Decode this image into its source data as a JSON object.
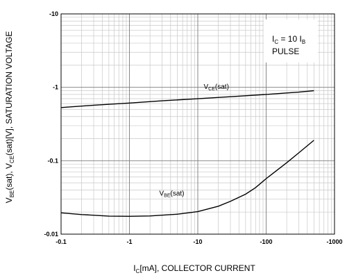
{
  "chart_data": {
    "type": "line",
    "xscale": "log",
    "yscale": "log",
    "xlim": [
      -0.1,
      -1000
    ],
    "ylim": [
      -0.01,
      -10
    ],
    "x_ticks": [
      "-0.1",
      "-1",
      "-10",
      "-100",
      "-1000"
    ],
    "y_ticks": [
      "-0.01",
      "-0.1",
      "-1",
      "-10"
    ],
    "xlabel": {
      "pre": "I",
      "sub": "C",
      "post": "[mA], COLLECTOR CURRENT"
    },
    "ylabel": {
      "p1": "V",
      "s1": "BE",
      "p2": "(sat),  V",
      "s2": "CE",
      "p3": "(sat)[V], SATURATION VOLTAGE"
    },
    "conditions": {
      "line1_pre": "I",
      "line1_sub1": "C",
      "line1_mid": " = 10 I",
      "line1_sub2": "B",
      "line2": "PULSE"
    },
    "grid": true,
    "series": [
      {
        "name": "VCE(sat)",
        "label_main": "V",
        "label_sub": "CE",
        "label_post": "(sat)",
        "x": [
          -0.1,
          -0.3,
          -1,
          -3,
          -10,
          -30,
          -100,
          -300,
          -500
        ],
        "y": [
          -0.53,
          -0.57,
          -0.61,
          -0.655,
          -0.7,
          -0.745,
          -0.8,
          -0.86,
          -0.9
        ]
      },
      {
        "name": "VBE(sat)",
        "label_main": "V",
        "label_sub": "BE",
        "label_post": "(sat)",
        "x": [
          -0.1,
          -0.2,
          -0.5,
          -1,
          -2,
          -5,
          -10,
          -20,
          -30,
          -50,
          -70,
          -100,
          -200,
          -300,
          -500
        ],
        "y": [
          -0.0195,
          -0.0185,
          -0.0176,
          -0.0175,
          -0.0177,
          -0.0187,
          -0.0203,
          -0.024,
          -0.028,
          -0.035,
          -0.043,
          -0.057,
          -0.094,
          -0.128,
          -0.19
        ]
      }
    ]
  }
}
